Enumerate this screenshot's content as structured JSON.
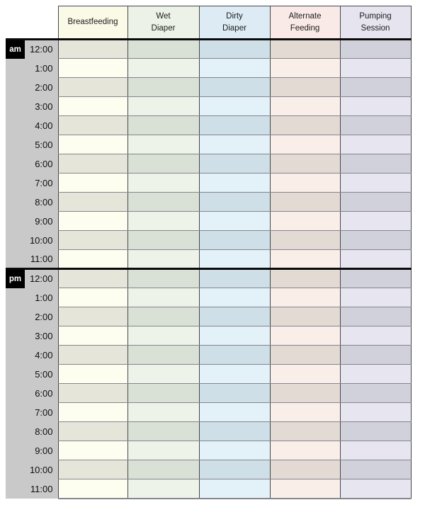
{
  "table": {
    "columns": [
      {
        "label": "Breastfeeding",
        "label_lines": [
          "Breastfeeding"
        ],
        "header_bg": "#fbfae7",
        "row_light": "#fefef0",
        "row_dark": "#e6e5da"
      },
      {
        "label": "Wet Diaper",
        "label_lines": [
          "Wet",
          "Diaper"
        ],
        "header_bg": "#ecf2e7",
        "row_light": "#edf3e9",
        "row_dark": "#d9e0d5"
      },
      {
        "label": "Dirty Diaper",
        "label_lines": [
          "Dirty",
          "Diaper"
        ],
        "header_bg": "#dcebf4",
        "row_light": "#e3f1f9",
        "row_dark": "#cedfe8"
      },
      {
        "label": "Alternate Feeding",
        "label_lines": [
          "Alternate",
          "Feeding"
        ],
        "header_bg": "#faeae7",
        "row_light": "#faeee9",
        "row_dark": "#e3dad3"
      },
      {
        "label": "Pumping Session",
        "label_lines": [
          "Pumping",
          "Session"
        ],
        "header_bg": "#e6e5ef",
        "row_light": "#e7e5f0",
        "row_dark": "#d1d1db"
      }
    ],
    "sections": [
      {
        "label": "am",
        "times": [
          "12:00",
          "1:00",
          "2:00",
          "3:00",
          "4:00",
          "5:00",
          "6:00",
          "7:00",
          "8:00",
          "9:00",
          "10:00",
          "11:00"
        ]
      },
      {
        "label": "pm",
        "times": [
          "12:00",
          "1:00",
          "2:00",
          "3:00",
          "4:00",
          "5:00",
          "6:00",
          "7:00",
          "8:00",
          "9:00",
          "10:00",
          "11:00"
        ]
      }
    ],
    "colors": {
      "gutter_bg": "#c9c9c9",
      "badge_bg": "#000000",
      "badge_text": "#ffffff",
      "border_vertical": "#46464c",
      "border_horizontal": "#85858d",
      "thick_separator": "#0a0a0a"
    }
  }
}
